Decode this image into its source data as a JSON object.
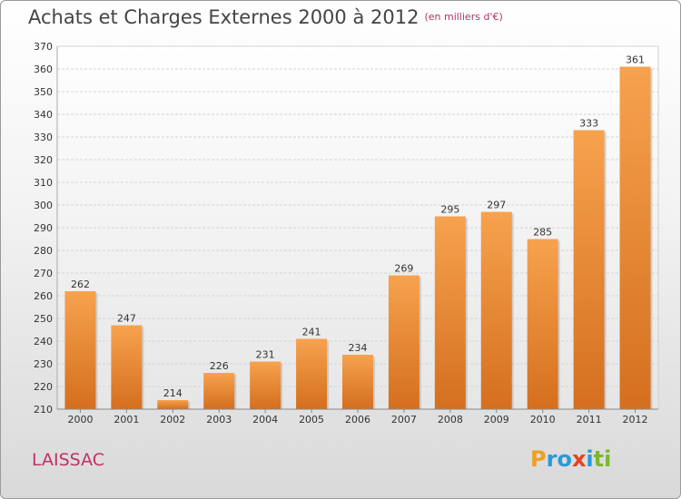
{
  "header": {
    "title": "Achats et Charges Externes 2000 à 2012",
    "unit": "(en milliers d'€)"
  },
  "footer": {
    "commune": "LAISSAC",
    "logo_letters": [
      "P",
      "r",
      "o",
      "x",
      "i",
      "t",
      "i"
    ],
    "logo_colors": [
      "#f0a020",
      "#2a9ad8",
      "#2a9ad8",
      "#e8401c",
      "#2a9ad8",
      "#7ab830",
      "#7ab830"
    ]
  },
  "chart_data": {
    "type": "bar",
    "title": "Achats et Charges Externes 2000 à 2012",
    "subtitle": "(en milliers d'€)",
    "categories": [
      "2000",
      "2001",
      "2002",
      "2003",
      "2004",
      "2005",
      "2006",
      "2007",
      "2008",
      "2009",
      "2010",
      "2011",
      "2012"
    ],
    "values": [
      262,
      247,
      214,
      226,
      231,
      241,
      234,
      269,
      295,
      297,
      285,
      333,
      361
    ],
    "ylim": [
      210,
      370
    ],
    "yticks": [
      210,
      220,
      230,
      240,
      250,
      260,
      270,
      280,
      290,
      300,
      310,
      320,
      330,
      340,
      350,
      360,
      370
    ],
    "grid": true,
    "bar_color_top": "#f7a24e",
    "bar_color_bottom": "#d46f1e"
  }
}
